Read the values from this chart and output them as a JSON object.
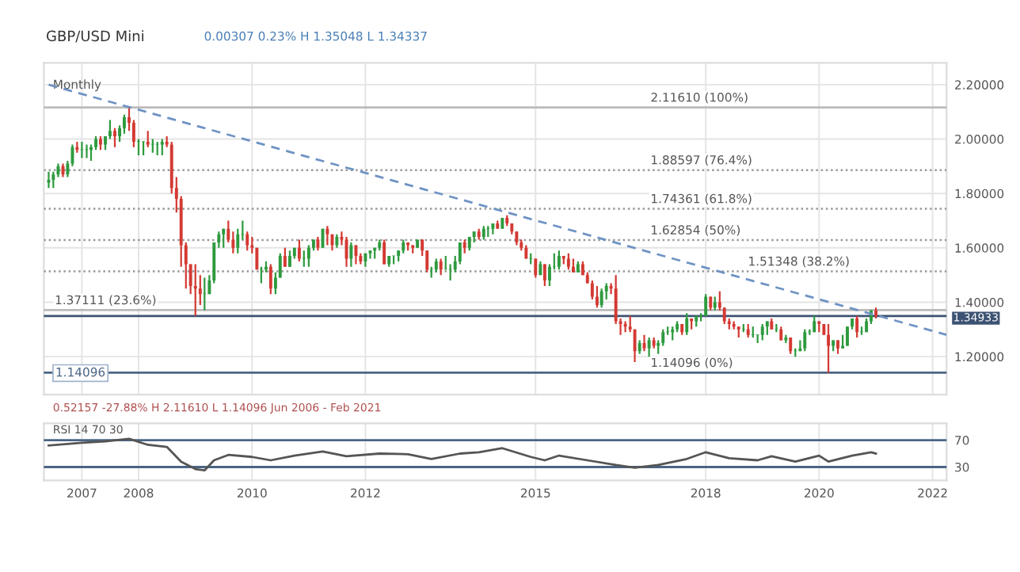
{
  "chart_data": [
    {
      "type": "candlestick",
      "title": "GBP/USD Mini",
      "subtitle": "0.00307 0.23% H 1.35048 L 1.34337",
      "annotations": [
        "Monthly",
        "0.52157 -27.88% H 2.11610 L 1.14096 Jun 2006 - Feb 2021",
        "1.14096"
      ],
      "x": [
        "2006-06",
        "2006-07",
        "2006-08",
        "2006-09",
        "2006-10",
        "2006-11",
        "2006-12",
        "2007-01",
        "2007-02",
        "2007-03",
        "2007-04",
        "2007-05",
        "2007-06",
        "2007-07",
        "2007-08",
        "2007-09",
        "2007-10",
        "2007-11",
        "2007-12",
        "2008-01",
        "2008-02",
        "2008-03",
        "2008-04",
        "2008-05",
        "2008-06",
        "2008-07",
        "2008-08",
        "2008-09",
        "2008-10",
        "2008-11",
        "2008-12",
        "2009-01",
        "2009-02",
        "2009-03",
        "2009-04",
        "2009-05",
        "2009-06",
        "2009-07",
        "2009-08",
        "2009-09",
        "2009-10",
        "2009-11",
        "2009-12",
        "2010-01",
        "2010-02",
        "2010-03",
        "2010-04",
        "2010-05",
        "2010-06",
        "2010-07",
        "2010-08",
        "2010-09",
        "2010-10",
        "2010-11",
        "2010-12",
        "2011-01",
        "2011-02",
        "2011-03",
        "2011-04",
        "2011-05",
        "2011-06",
        "2011-07",
        "2011-08",
        "2011-09",
        "2011-10",
        "2011-11",
        "2011-12",
        "2012-01",
        "2012-02",
        "2012-03",
        "2012-04",
        "2012-05",
        "2012-06",
        "2012-07",
        "2012-08",
        "2012-09",
        "2012-10",
        "2012-11",
        "2012-12",
        "2013-01",
        "2013-02",
        "2013-03",
        "2013-04",
        "2013-05",
        "2013-06",
        "2013-07",
        "2013-08",
        "2013-09",
        "2013-10",
        "2013-11",
        "2013-12",
        "2014-01",
        "2014-02",
        "2014-03",
        "2014-04",
        "2014-05",
        "2014-06",
        "2014-07",
        "2014-08",
        "2014-09",
        "2014-10",
        "2014-11",
        "2014-12",
        "2015-01",
        "2015-02",
        "2015-03",
        "2015-04",
        "2015-05",
        "2015-06",
        "2015-07",
        "2015-08",
        "2015-09",
        "2015-10",
        "2015-11",
        "2015-12",
        "2016-01",
        "2016-02",
        "2016-03",
        "2016-04",
        "2016-05",
        "2016-06",
        "2016-07",
        "2016-08",
        "2016-09",
        "2016-10",
        "2016-11",
        "2016-12",
        "2017-01",
        "2017-02",
        "2017-03",
        "2017-04",
        "2017-05",
        "2017-06",
        "2017-07",
        "2017-08",
        "2017-09",
        "2017-10",
        "2017-11",
        "2017-12",
        "2018-01",
        "2018-02",
        "2018-03",
        "2018-04",
        "2018-05",
        "2018-06",
        "2018-07",
        "2018-08",
        "2018-09",
        "2018-10",
        "2018-11",
        "2018-12",
        "2019-01",
        "2019-02",
        "2019-03",
        "2019-04",
        "2019-05",
        "2019-06",
        "2019-07",
        "2019-08",
        "2019-09",
        "2019-10",
        "2019-11",
        "2019-12",
        "2020-01",
        "2020-02",
        "2020-03",
        "2020-04",
        "2020-05",
        "2020-06",
        "2020-07",
        "2020-08",
        "2020-09",
        "2020-10",
        "2020-11",
        "2020-12",
        "2021-01"
      ],
      "ohlc": [
        [
          1.84,
          1.88,
          1.82,
          1.85
        ],
        [
          1.85,
          1.88,
          1.82,
          1.87
        ],
        [
          1.87,
          1.91,
          1.86,
          1.9
        ],
        [
          1.9,
          1.91,
          1.86,
          1.87
        ],
        [
          1.87,
          1.92,
          1.86,
          1.91
        ],
        [
          1.91,
          1.98,
          1.9,
          1.97
        ],
        [
          1.97,
          1.99,
          1.95,
          1.96
        ],
        [
          1.96,
          1.99,
          1.93,
          1.96
        ],
        [
          1.96,
          1.98,
          1.93,
          1.96
        ],
        [
          1.96,
          1.98,
          1.92,
          1.97
        ],
        [
          1.97,
          2.01,
          1.96,
          2.0
        ],
        [
          2.0,
          2.01,
          1.96,
          1.98
        ],
        [
          1.98,
          2.01,
          1.96,
          2.01
        ],
        [
          2.01,
          2.07,
          2.0,
          2.03
        ],
        [
          2.03,
          2.04,
          1.97,
          2.01
        ],
        [
          2.01,
          2.05,
          1.99,
          2.04
        ],
        [
          2.04,
          2.09,
          2.02,
          2.08
        ],
        [
          2.08,
          2.1161,
          2.03,
          2.06
        ],
        [
          2.06,
          2.07,
          1.97,
          1.99
        ],
        [
          1.99,
          2.0,
          1.94,
          1.99
        ],
        [
          1.99,
          1.99,
          1.94,
          1.99
        ],
        [
          1.99,
          2.03,
          1.97,
          1.98
        ],
        [
          1.98,
          2.0,
          1.95,
          1.98
        ],
        [
          1.98,
          1.99,
          1.94,
          1.98
        ],
        [
          1.98,
          2.0,
          1.94,
          1.99
        ],
        [
          1.99,
          2.01,
          1.97,
          1.98
        ],
        [
          1.98,
          1.99,
          1.8,
          1.82
        ],
        [
          1.82,
          1.86,
          1.73,
          1.78
        ],
        [
          1.78,
          1.79,
          1.53,
          1.61
        ],
        [
          1.61,
          1.62,
          1.45,
          1.54
        ],
        [
          1.54,
          1.54,
          1.43,
          1.46
        ],
        [
          1.46,
          1.54,
          1.35,
          1.45
        ],
        [
          1.45,
          1.5,
          1.39,
          1.43
        ],
        [
          1.43,
          1.49,
          1.37,
          1.43
        ],
        [
          1.43,
          1.5,
          1.43,
          1.48
        ],
        [
          1.48,
          1.62,
          1.47,
          1.62
        ],
        [
          1.62,
          1.66,
          1.6,
          1.65
        ],
        [
          1.65,
          1.67,
          1.6,
          1.67
        ],
        [
          1.67,
          1.7,
          1.62,
          1.63
        ],
        [
          1.63,
          1.66,
          1.58,
          1.6
        ],
        [
          1.6,
          1.67,
          1.58,
          1.65
        ],
        [
          1.65,
          1.7,
          1.63,
          1.65
        ],
        [
          1.65,
          1.66,
          1.59,
          1.61
        ],
        [
          1.61,
          1.64,
          1.58,
          1.6
        ],
        [
          1.6,
          1.6,
          1.52,
          1.52
        ],
        [
          1.52,
          1.53,
          1.47,
          1.52
        ],
        [
          1.52,
          1.55,
          1.51,
          1.53
        ],
        [
          1.53,
          1.54,
          1.43,
          1.45
        ],
        [
          1.45,
          1.51,
          1.43,
          1.49
        ],
        [
          1.49,
          1.58,
          1.49,
          1.57
        ],
        [
          1.57,
          1.6,
          1.53,
          1.53
        ],
        [
          1.53,
          1.59,
          1.53,
          1.57
        ],
        [
          1.57,
          1.6,
          1.56,
          1.6
        ],
        [
          1.6,
          1.63,
          1.55,
          1.56
        ],
        [
          1.56,
          1.59,
          1.53,
          1.56
        ],
        [
          1.56,
          1.61,
          1.53,
          1.6
        ],
        [
          1.6,
          1.63,
          1.59,
          1.63
        ],
        [
          1.63,
          1.64,
          1.59,
          1.6
        ],
        [
          1.6,
          1.67,
          1.6,
          1.67
        ],
        [
          1.67,
          1.68,
          1.61,
          1.65
        ],
        [
          1.65,
          1.65,
          1.59,
          1.61
        ],
        [
          1.61,
          1.65,
          1.6,
          1.64
        ],
        [
          1.64,
          1.66,
          1.61,
          1.63
        ],
        [
          1.63,
          1.64,
          1.53,
          1.56
        ],
        [
          1.56,
          1.62,
          1.53,
          1.61
        ],
        [
          1.61,
          1.61,
          1.54,
          1.57
        ],
        [
          1.57,
          1.58,
          1.54,
          1.55
        ],
        [
          1.55,
          1.58,
          1.53,
          1.58
        ],
        [
          1.58,
          1.59,
          1.56,
          1.59
        ],
        [
          1.59,
          1.6,
          1.56,
          1.6
        ],
        [
          1.6,
          1.63,
          1.59,
          1.62
        ],
        [
          1.62,
          1.63,
          1.54,
          1.54
        ],
        [
          1.54,
          1.57,
          1.53,
          1.57
        ],
        [
          1.57,
          1.57,
          1.54,
          1.57
        ],
        [
          1.57,
          1.59,
          1.55,
          1.59
        ],
        [
          1.59,
          1.63,
          1.58,
          1.62
        ],
        [
          1.62,
          1.62,
          1.59,
          1.61
        ],
        [
          1.61,
          1.61,
          1.58,
          1.6
        ],
        [
          1.6,
          1.63,
          1.6,
          1.63
        ],
        [
          1.63,
          1.63,
          1.57,
          1.59
        ],
        [
          1.59,
          1.59,
          1.51,
          1.52
        ],
        [
          1.52,
          1.53,
          1.49,
          1.52
        ],
        [
          1.52,
          1.56,
          1.51,
          1.55
        ],
        [
          1.55,
          1.56,
          1.5,
          1.52
        ],
        [
          1.52,
          1.57,
          1.52,
          1.52
        ],
        [
          1.52,
          1.54,
          1.48,
          1.52
        ],
        [
          1.52,
          1.57,
          1.51,
          1.55
        ],
        [
          1.55,
          1.62,
          1.54,
          1.62
        ],
        [
          1.62,
          1.63,
          1.58,
          1.6
        ],
        [
          1.6,
          1.64,
          1.59,
          1.64
        ],
        [
          1.64,
          1.66,
          1.62,
          1.66
        ],
        [
          1.66,
          1.67,
          1.63,
          1.64
        ],
        [
          1.64,
          1.68,
          1.63,
          1.67
        ],
        [
          1.67,
          1.68,
          1.64,
          1.67
        ],
        [
          1.67,
          1.69,
          1.65,
          1.69
        ],
        [
          1.69,
          1.7,
          1.67,
          1.67
        ],
        [
          1.67,
          1.71,
          1.67,
          1.71
        ],
        [
          1.71,
          1.72,
          1.68,
          1.69
        ],
        [
          1.69,
          1.69,
          1.65,
          1.66
        ],
        [
          1.66,
          1.66,
          1.61,
          1.62
        ],
        [
          1.62,
          1.63,
          1.59,
          1.6
        ],
        [
          1.6,
          1.61,
          1.56,
          1.56
        ],
        [
          1.56,
          1.58,
          1.54,
          1.56
        ],
        [
          1.56,
          1.56,
          1.49,
          1.5
        ],
        [
          1.5,
          1.55,
          1.5,
          1.54
        ],
        [
          1.54,
          1.54,
          1.46,
          1.48
        ],
        [
          1.48,
          1.54,
          1.46,
          1.53
        ],
        [
          1.53,
          1.58,
          1.52,
          1.53
        ],
        [
          1.53,
          1.59,
          1.52,
          1.57
        ],
        [
          1.57,
          1.57,
          1.54,
          1.56
        ],
        [
          1.56,
          1.58,
          1.52,
          1.53
        ],
        [
          1.53,
          1.56,
          1.51,
          1.51
        ],
        [
          1.51,
          1.55,
          1.51,
          1.54
        ],
        [
          1.54,
          1.55,
          1.5,
          1.5
        ],
        [
          1.5,
          1.51,
          1.47,
          1.47
        ],
        [
          1.47,
          1.48,
          1.41,
          1.42
        ],
        [
          1.42,
          1.46,
          1.38,
          1.39
        ],
        [
          1.39,
          1.45,
          1.38,
          1.44
        ],
        [
          1.44,
          1.47,
          1.41,
          1.46
        ],
        [
          1.46,
          1.47,
          1.43,
          1.45
        ],
        [
          1.45,
          1.5,
          1.32,
          1.33
        ],
        [
          1.33,
          1.34,
          1.28,
          1.32
        ],
        [
          1.32,
          1.33,
          1.29,
          1.31
        ],
        [
          1.31,
          1.35,
          1.29,
          1.3
        ],
        [
          1.3,
          1.3,
          1.18,
          1.22
        ],
        [
          1.22,
          1.26,
          1.21,
          1.25
        ],
        [
          1.25,
          1.28,
          1.22,
          1.23
        ],
        [
          1.23,
          1.27,
          1.2,
          1.26
        ],
        [
          1.26,
          1.27,
          1.23,
          1.24
        ],
        [
          1.24,
          1.26,
          1.21,
          1.25
        ],
        [
          1.25,
          1.3,
          1.24,
          1.29
        ],
        [
          1.29,
          1.31,
          1.28,
          1.29
        ],
        [
          1.29,
          1.31,
          1.26,
          1.3
        ],
        [
          1.3,
          1.33,
          1.29,
          1.32
        ],
        [
          1.32,
          1.32,
          1.28,
          1.29
        ],
        [
          1.29,
          1.36,
          1.28,
          1.34
        ],
        [
          1.34,
          1.34,
          1.3,
          1.33
        ],
        [
          1.33,
          1.35,
          1.31,
          1.35
        ],
        [
          1.35,
          1.36,
          1.33,
          1.35
        ],
        [
          1.35,
          1.43,
          1.35,
          1.42
        ],
        [
          1.42,
          1.42,
          1.37,
          1.38
        ],
        [
          1.38,
          1.42,
          1.37,
          1.4
        ],
        [
          1.4,
          1.44,
          1.37,
          1.38
        ],
        [
          1.38,
          1.38,
          1.32,
          1.33
        ],
        [
          1.33,
          1.34,
          1.3,
          1.32
        ],
        [
          1.32,
          1.33,
          1.3,
          1.31
        ],
        [
          1.31,
          1.31,
          1.27,
          1.3
        ],
        [
          1.3,
          1.32,
          1.29,
          1.3
        ],
        [
          1.3,
          1.32,
          1.27,
          1.28
        ],
        [
          1.28,
          1.31,
          1.27,
          1.28
        ],
        [
          1.28,
          1.28,
          1.25,
          1.28
        ],
        [
          1.28,
          1.32,
          1.26,
          1.31
        ],
        [
          1.31,
          1.33,
          1.28,
          1.33
        ],
        [
          1.33,
          1.34,
          1.3,
          1.3
        ],
        [
          1.3,
          1.32,
          1.29,
          1.3
        ],
        [
          1.3,
          1.31,
          1.26,
          1.26
        ],
        [
          1.26,
          1.28,
          1.25,
          1.27
        ],
        [
          1.27,
          1.27,
          1.21,
          1.22
        ],
        [
          1.22,
          1.23,
          1.2,
          1.22
        ],
        [
          1.22,
          1.26,
          1.22,
          1.23
        ],
        [
          1.23,
          1.3,
          1.22,
          1.29
        ],
        [
          1.29,
          1.3,
          1.28,
          1.29
        ],
        [
          1.29,
          1.35,
          1.29,
          1.33
        ],
        [
          1.33,
          1.33,
          1.29,
          1.32
        ],
        [
          1.32,
          1.32,
          1.28,
          1.28
        ],
        [
          1.28,
          1.32,
          1.14096,
          1.24
        ],
        [
          1.24,
          1.26,
          1.22,
          1.26
        ],
        [
          1.26,
          1.26,
          1.21,
          1.23
        ],
        [
          1.23,
          1.28,
          1.23,
          1.24
        ],
        [
          1.24,
          1.31,
          1.24,
          1.31
        ],
        [
          1.31,
          1.34,
          1.3,
          1.34
        ],
        [
          1.34,
          1.35,
          1.27,
          1.29
        ],
        [
          1.29,
          1.31,
          1.28,
          1.29
        ],
        [
          1.29,
          1.34,
          1.29,
          1.33
        ],
        [
          1.33,
          1.37,
          1.32,
          1.37
        ],
        [
          1.37,
          1.38,
          1.34,
          1.34933
        ]
      ],
      "series": [
        {
          "type": "line",
          "x": [
            "2006-06",
            "2022-04"
          ],
          "values": [
            2.2,
            1.28
          ],
          "color": "#6f93c4",
          "line_style": "dashed"
        }
      ],
      "xlim": [
        "2006-05",
        "2022-04"
      ],
      "xticks": [
        "2007",
        "2008",
        "2010",
        "2012",
        "2015",
        "2018",
        "2020",
        "2022"
      ],
      "ylim": [
        1.06,
        2.28
      ],
      "yticks": [
        {
          "value": 1.2,
          "label": "1.20000"
        },
        {
          "value": 1.4,
          "label": "1.40000"
        },
        {
          "value": 1.6,
          "label": "1.60000"
        },
        {
          "value": 1.8,
          "label": "1.80000"
        },
        {
          "value": 2.0,
          "label": "2.00000"
        },
        {
          "value": 2.2,
          "label": "2.20000"
        }
      ],
      "ref_lines": [
        {
          "axis": "y",
          "value": 2.1161,
          "label": "2.11610 (100%)",
          "color": "#bbbbbb",
          "line_style": "solid"
        },
        {
          "axis": "y",
          "value": 1.88597,
          "label": "1.88597 (76.4%)",
          "color": "#999999",
          "line_style": "dotted"
        },
        {
          "axis": "y",
          "value": 1.74361,
          "label": "1.74361 (61.8%)",
          "color": "#999999",
          "line_style": "dotted"
        },
        {
          "axis": "y",
          "value": 1.62854,
          "label": "1.62854 (50%)",
          "color": "#999999",
          "line_style": "dotted"
        },
        {
          "axis": "y",
          "value": 1.51348,
          "label": "1.51348 (38.2%)",
          "color": "#999999",
          "line_style": "dotted"
        },
        {
          "axis": "y",
          "value": 1.37111,
          "label": "1.37111 (23.6%)",
          "color": "#bbbbbb",
          "line_style": "solid"
        },
        {
          "axis": "y",
          "value": 1.14096,
          "label": "1.14096 (0%)",
          "color": "#4a6585",
          "line_style": "solid"
        },
        {
          "axis": "y",
          "value": 1.34933,
          "label": "1.34933",
          "color": "#3c5272",
          "line_style": "solid"
        }
      ],
      "grid": true,
      "tick_labels": "y",
      "legend": false
    },
    {
      "type": "line",
      "title": "RSI 14 70 30",
      "series": [
        {
          "color": "#555555",
          "x": [
            "2006-06",
            "2007-01",
            "2007-06",
            "2007-11",
            "2008-03",
            "2008-07",
            "2008-10",
            "2009-01",
            "2009-03",
            "2009-05",
            "2009-08",
            "2010-01",
            "2010-05",
            "2010-10",
            "2011-04",
            "2011-09",
            "2012-04",
            "2012-10",
            "2013-03",
            "2013-09",
            "2014-01",
            "2014-06",
            "2014-12",
            "2015-03",
            "2015-06",
            "2015-12",
            "2016-06",
            "2016-10",
            "2017-03",
            "2017-09",
            "2018-01",
            "2018-06",
            "2018-12",
            "2019-03",
            "2019-08",
            "2020-01",
            "2020-03",
            "2020-08",
            "2020-12",
            "2021-01"
          ],
          "values": [
            62,
            66,
            68,
            72,
            63,
            60,
            38,
            27,
            25,
            40,
            48,
            45,
            40,
            47,
            53,
            46,
            50,
            49,
            42,
            50,
            52,
            58,
            45,
            40,
            47,
            40,
            33,
            29,
            33,
            42,
            52,
            43,
            40,
            46,
            38,
            47,
            38,
            47,
            52,
            50
          ]
        }
      ],
      "xlim": [
        "2006-05",
        "2022-04"
      ],
      "xticks": [
        "2007",
        "2008",
        "2010",
        "2012",
        "2015",
        "2018",
        "2020",
        "2022"
      ],
      "ylim": [
        10,
        95
      ],
      "yticks": [
        30,
        70
      ],
      "ref_lines": [
        {
          "axis": "y",
          "value": 70,
          "color": "#4a6585",
          "line_style": "solid"
        },
        {
          "axis": "y",
          "value": 30,
          "color": "#4a6585",
          "line_style": "solid"
        }
      ],
      "grid": "x",
      "marker": "none",
      "line_style": "solid",
      "legend": false
    }
  ]
}
